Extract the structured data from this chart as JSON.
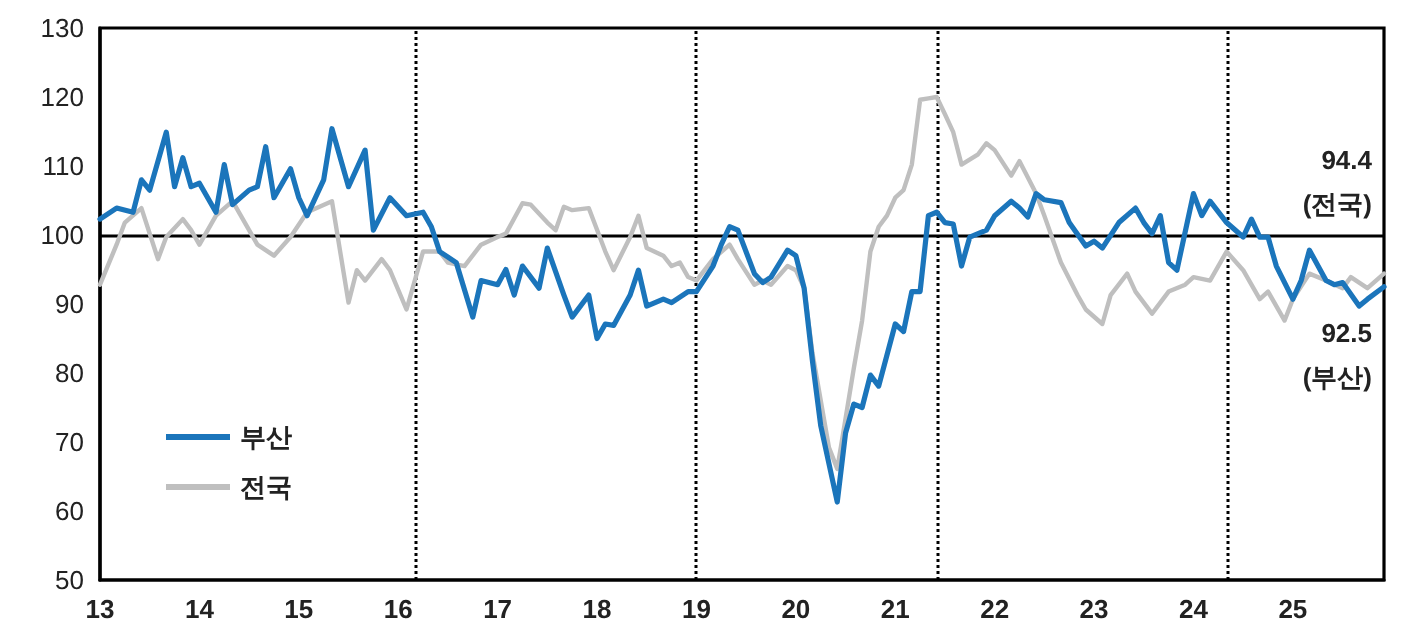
{
  "chart_data": {
    "type": "line",
    "xlim": [
      "2013-01",
      "2025-12"
    ],
    "xticks": [
      {
        "value": "2013-01",
        "label": "13"
      },
      {
        "value": "2014-01",
        "label": "14"
      },
      {
        "value": "2015-01",
        "label": "15"
      },
      {
        "value": "2016-01",
        "label": "16"
      },
      {
        "value": "2017-01",
        "label": "17"
      },
      {
        "value": "2018-01",
        "label": "18"
      },
      {
        "value": "2019-01",
        "label": "19"
      },
      {
        "value": "2020-01",
        "label": "20"
      },
      {
        "value": "2021-01",
        "label": "21"
      },
      {
        "value": "2022-01",
        "label": "22"
      },
      {
        "value": "2023-01",
        "label": "23"
      },
      {
        "value": "2024-01",
        "label": "24"
      },
      {
        "value": "2025-01",
        "label": "25"
      }
    ],
    "ylim": [
      50,
      130
    ],
    "yticks": [
      50,
      60,
      70,
      80,
      90,
      100,
      110,
      120,
      130
    ],
    "grid": false,
    "legend": "bottom left",
    "marker": "none",
    "line_style": "solid",
    "series": [
      {
        "name": "부산",
        "color": "#1b75bb",
        "x": [
          "2013-01",
          "2013-03",
          "2013-05",
          "2013-06",
          "2013-07",
          "2013-09",
          "2013-10",
          "2013-11",
          "2013-12",
          "2014-01",
          "2014-03",
          "2014-04",
          "2014-05",
          "2014-07",
          "2014-08",
          "2014-09",
          "2014-10",
          "2014-12",
          "2015-01",
          "2015-02",
          "2015-04",
          "2015-05",
          "2015-07",
          "2015-09",
          "2015-10",
          "2015-12",
          "2016-02",
          "2016-04",
          "2016-05",
          "2016-06",
          "2016-08",
          "2016-10",
          "2016-11",
          "2017-01",
          "2017-02",
          "2017-03",
          "2017-04",
          "2017-06",
          "2017-07",
          "2017-09",
          "2017-10",
          "2017-12",
          "2018-01",
          "2018-02",
          "2018-03",
          "2018-05",
          "2018-06",
          "2018-07",
          "2018-09",
          "2018-10",
          "2018-12",
          "2019-01",
          "2019-03",
          "2019-04",
          "2019-05",
          "2019-06",
          "2019-08",
          "2019-09",
          "2019-10",
          "2019-12",
          "2020-01",
          "2020-02",
          "2020-03",
          "2020-04",
          "2020-06",
          "2020-07",
          "2020-08",
          "2020-09",
          "2020-10",
          "2020-11",
          "2021-01",
          "2021-02",
          "2021-03",
          "2021-04",
          "2021-05",
          "2021-06",
          "2021-07",
          "2021-08",
          "2021-09",
          "2021-10",
          "2021-12",
          "2022-01",
          "2022-03",
          "2022-04",
          "2022-05",
          "2022-06",
          "2022-07",
          "2022-09",
          "2022-10",
          "2022-12",
          "2023-01",
          "2023-02",
          "2023-04",
          "2023-06",
          "2023-07",
          "2023-08",
          "2023-09",
          "2023-10",
          "2023-11",
          "2024-01",
          "2024-02",
          "2024-03",
          "2024-05",
          "2024-07",
          "2024-08",
          "2024-09",
          "2024-10",
          "2024-11",
          "2025-01",
          "2025-02",
          "2025-03",
          "2025-05",
          "2025-06",
          "2025-07",
          "2025-09",
          "2025-10",
          "2025-12"
        ],
        "values": [
          102.3,
          103.9,
          103.3,
          108,
          106.5,
          114.9,
          107,
          111.2,
          107,
          107.5,
          103.3,
          110.2,
          104.4,
          106.5,
          107,
          112.8,
          105.4,
          109.6,
          105.4,
          102.8,
          108,
          115.4,
          107,
          112.3,
          100.7,
          105.4,
          102.8,
          103.3,
          101.2,
          97.6,
          96,
          88.1,
          93.4,
          92.8,
          95,
          91.3,
          95.5,
          92.3,
          98.1,
          91.3,
          88.1,
          91.3,
          85,
          87.1,
          86.9,
          91.3,
          94.9,
          89.7,
          90.7,
          90.2,
          91.8,
          91.8,
          95.5,
          98.6,
          101.2,
          100.7,
          94.4,
          93.1,
          93.9,
          97.8,
          97,
          92.3,
          81.8,
          72.4,
          61.3,
          71.3,
          75.5,
          75,
          79.7,
          78.1,
          87.1,
          86,
          91.8,
          91.8,
          102.8,
          103.3,
          101.8,
          101.6,
          95.5,
          99.7,
          100.7,
          102.8,
          104.9,
          103.9,
          102.6,
          106,
          105.1,
          104.7,
          101.8,
          98.4,
          99.1,
          98.1,
          101.8,
          103.9,
          101.8,
          100.2,
          102.8,
          96,
          94.9,
          106,
          102.8,
          104.9,
          101.8,
          99.7,
          102.3,
          99.7,
          99.7,
          95.5,
          90.7,
          93.4,
          97.8,
          93.4,
          92.8,
          93.1,
          89.7,
          90.7,
          92.5
        ]
      },
      {
        "name": "전국",
        "color": "#bfbfbf",
        "x": [
          "2013-01",
          "2013-03",
          "2013-04",
          "2013-06",
          "2013-08",
          "2013-09",
          "2013-11",
          "2013-12",
          "2014-01",
          "2014-03",
          "2014-05",
          "2014-08",
          "2014-10",
          "2014-12",
          "2015-02",
          "2015-05",
          "2015-07",
          "2015-08",
          "2015-09",
          "2015-11",
          "2015-12",
          "2016-02",
          "2016-04",
          "2016-06",
          "2016-07",
          "2016-09",
          "2016-11",
          "2017-01",
          "2017-02",
          "2017-04",
          "2017-05",
          "2017-07",
          "2017-08",
          "2017-09",
          "2017-10",
          "2017-12",
          "2018-02",
          "2018-03",
          "2018-05",
          "2018-06",
          "2018-07",
          "2018-09",
          "2018-10",
          "2018-11",
          "2018-12",
          "2019-01",
          "2019-03",
          "2019-05",
          "2019-06",
          "2019-08",
          "2019-09",
          "2019-10",
          "2019-12",
          "2020-01",
          "2020-02",
          "2020-03",
          "2020-05",
          "2020-06",
          "2020-07",
          "2020-08",
          "2020-09",
          "2020-10",
          "2020-11",
          "2020-12",
          "2021-01",
          "2021-02",
          "2021-03",
          "2021-04",
          "2021-05",
          "2021-06",
          "2021-07",
          "2021-08",
          "2021-09",
          "2021-11",
          "2021-12",
          "2022-01",
          "2022-03",
          "2022-04",
          "2022-06",
          "2022-07",
          "2022-09",
          "2022-11",
          "2022-12",
          "2023-02",
          "2023-03",
          "2023-05",
          "2023-06",
          "2023-08",
          "2023-10",
          "2023-12",
          "2024-01",
          "2024-03",
          "2024-05",
          "2024-07",
          "2024-09",
          "2024-10",
          "2024-12",
          "2025-01",
          "2025-03",
          "2025-05",
          "2025-07",
          "2025-08",
          "2025-10",
          "2025-12"
        ],
        "values": [
          92.8,
          98.6,
          101.8,
          103.9,
          96.5,
          99.7,
          102.3,
          100.7,
          98.6,
          102.8,
          104.9,
          98.6,
          97,
          99.7,
          103.3,
          104.9,
          90.2,
          94.9,
          93.4,
          96.5,
          94.9,
          89.2,
          97.6,
          97.6,
          96,
          95.5,
          98.6,
          99.7,
          100.2,
          104.6,
          104.4,
          101.8,
          100.7,
          104.1,
          103.6,
          103.9,
          97.6,
          94.9,
          99.7,
          102.8,
          98.1,
          97,
          95.5,
          96,
          93.9,
          93.4,
          96.5,
          98.6,
          96.5,
          92.8,
          93.4,
          92.8,
          95.5,
          94.9,
          92.3,
          82.9,
          69.2,
          66.1,
          73.4,
          80.7,
          87.6,
          97.6,
          101.2,
          102.8,
          105.4,
          106.5,
          110.2,
          119.6,
          119.8,
          120,
          117.5,
          114.9,
          110.2,
          111.7,
          113.3,
          112.3,
          108.6,
          110.7,
          106,
          102.8,
          96,
          91.3,
          89.2,
          87.1,
          91.3,
          94.4,
          91.8,
          88.6,
          91.8,
          92.8,
          93.9,
          93.4,
          97.6,
          94.9,
          90.7,
          91.8,
          87.6,
          90.7,
          94.4,
          93.4,
          92.3,
          93.9,
          92.3,
          94.4
        ]
      }
    ],
    "ref_lines": [
      {
        "axis": "y",
        "value": 100,
        "color": "#000000",
        "line_style": "solid"
      },
      {
        "axis": "x",
        "value": "2016-03",
        "color": "#000000",
        "line_style": "dotted"
      },
      {
        "axis": "x",
        "value": "2019-01",
        "color": "#000000",
        "line_style": "dotted"
      },
      {
        "axis": "x",
        "value": "2021-06",
        "color": "#000000",
        "line_style": "dotted"
      },
      {
        "axis": "x",
        "value": "2024-05",
        "color": "#000000",
        "line_style": "dotted"
      }
    ],
    "annotations": [
      {
        "text": "94.4\n(전국)",
        "x": "2025-12",
        "y": 94.4
      },
      {
        "text": "92.5\n(부산)",
        "x": "2025-12",
        "y": 92.5
      }
    ]
  }
}
